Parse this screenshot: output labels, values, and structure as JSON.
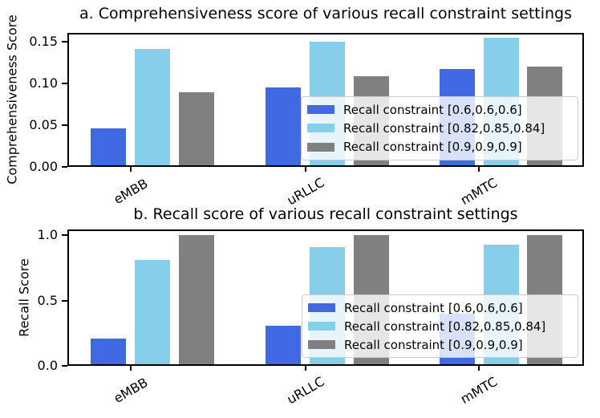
{
  "figure": {
    "background": "#ffffff",
    "text_color": "#000000",
    "axis_color": "#000000",
    "legend_border_color": "#cccccc"
  },
  "chart_data": [
    {
      "type": "bar",
      "title": "a. Comprehensiveness score of various recall constraint settings",
      "ylabel": "Comprehensiveness Score",
      "xlabel": "",
      "categories": [
        "eMBB",
        "uRLLC",
        "mMTC"
      ],
      "series": [
        {
          "name": "Recall constraint [0.6,0.6,0.6]",
          "color": "#4169E1",
          "values": [
            0.046,
            0.095,
            0.117
          ]
        },
        {
          "name": "Recall constraint [0.82,0.85,0.84]",
          "color": "#87CEEB",
          "values": [
            0.141,
            0.15,
            0.155
          ]
        },
        {
          "name": "Recall constraint [0.9,0.9,0.9]",
          "color": "#808080",
          "values": [
            0.089,
            0.109,
            0.12
          ]
        }
      ],
      "ylim": [
        0,
        0.1604
      ],
      "yticks": {
        "values": [
          0,
          0.05,
          0.1,
          0.15
        ],
        "labels": [
          "0.00",
          "0.05",
          "0.10",
          "0.15"
        ]
      },
      "grid": false,
      "legend": {
        "location": "inside lower-right",
        "frame": true
      }
    },
    {
      "type": "bar",
      "title": "b. Recall score of various recall constraint settings",
      "ylabel": "Recall Score",
      "xlabel": "",
      "categories": [
        "eMBB",
        "uRLLC",
        "mMTC"
      ],
      "series": [
        {
          "name": "Recall constraint [0.6,0.6,0.6]",
          "color": "#4169E1",
          "values": [
            0.21,
            0.31,
            0.4
          ]
        },
        {
          "name": "Recall constraint [0.82,0.85,0.84]",
          "color": "#87CEEB",
          "values": [
            0.81,
            0.91,
            0.93
          ]
        },
        {
          "name": "Recall constraint [0.9,0.9,0.9]",
          "color": "#808080",
          "values": [
            1.0,
            1.0,
            1.0
          ]
        }
      ],
      "ylim": [
        0,
        1.046
      ],
      "yticks": {
        "values": [
          0,
          0.5,
          1.0
        ],
        "labels": [
          "0.0",
          "0.5",
          "1.0"
        ]
      },
      "grid": false,
      "legend": {
        "location": "inside lower-right",
        "frame": true
      }
    }
  ]
}
